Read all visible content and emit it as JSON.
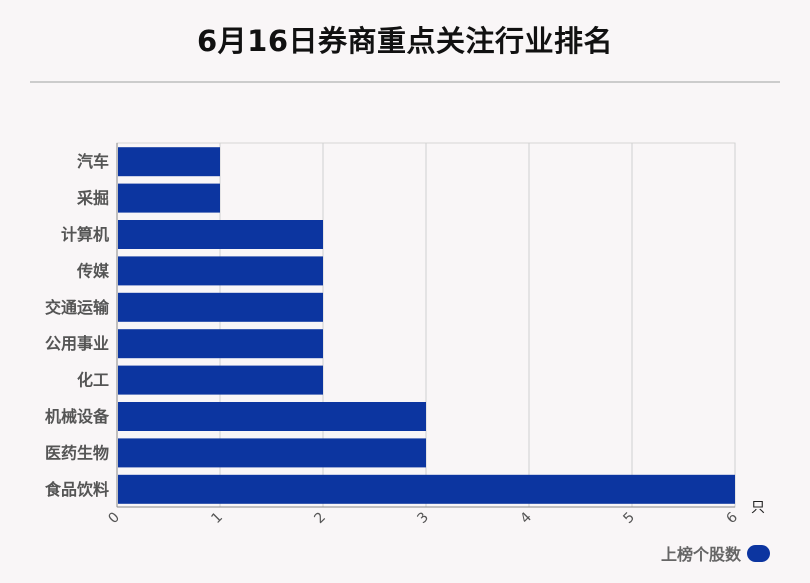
{
  "chart_data": {
    "type": "bar",
    "orientation": "horizontal",
    "title": "6月16日券商重点关注行业排名",
    "categories": [
      "汽车",
      "采掘",
      "计算机",
      "传媒",
      "交通运输",
      "公用事业",
      "化工",
      "机械设备",
      "医药生物",
      "食品饮料"
    ],
    "series": [
      {
        "name": "上榜个股数",
        "values": [
          1,
          1,
          2,
          2,
          2,
          2,
          2,
          3,
          3,
          6
        ]
      }
    ],
    "xlim": [
      0,
      6
    ],
    "xticks": [
      "0",
      "1",
      "2",
      "3",
      "4",
      "5",
      "6"
    ],
    "x_unit": "只",
    "grid": true,
    "legend_position": "bottom-right",
    "colors": {
      "bar": "#0c35a0"
    }
  }
}
